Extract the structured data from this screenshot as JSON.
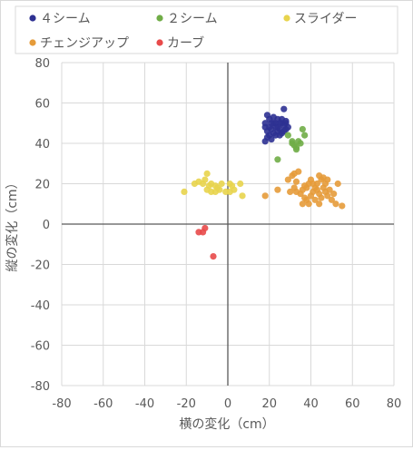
{
  "chart_data": {
    "type": "scatter",
    "title": "",
    "xlabel": "横の変化（cm）",
    "ylabel": "縦の変化（cm）",
    "xlim": [
      -80,
      80
    ],
    "ylim": [
      -80,
      80
    ],
    "x_ticks": [
      -80,
      -60,
      -40,
      -20,
      0,
      20,
      40,
      60,
      80
    ],
    "y_ticks": [
      -80,
      -60,
      -40,
      -20,
      0,
      20,
      40,
      60,
      80
    ],
    "x_tick_labels": [
      "-80",
      "-60",
      "-40",
      "-20",
      "0",
      "20",
      "40",
      "60",
      "80"
    ],
    "y_tick_labels": [
      "-80",
      "-60",
      "-40",
      "-20",
      "0",
      "20",
      "40",
      "60",
      "80"
    ],
    "grid": true,
    "legend_position": "top",
    "series": [
      {
        "name": "４シーム",
        "color": "#2e3192",
        "points": [
          [
            18,
            41
          ],
          [
            19,
            43
          ],
          [
            20,
            44
          ],
          [
            21,
            42
          ],
          [
            22,
            45
          ],
          [
            19,
            46
          ],
          [
            20,
            48
          ],
          [
            21,
            47
          ],
          [
            22,
            50
          ],
          [
            23,
            48
          ],
          [
            24,
            46
          ],
          [
            25,
            47
          ],
          [
            26,
            50
          ],
          [
            27,
            49
          ],
          [
            28,
            47
          ],
          [
            24,
            52
          ],
          [
            26,
            52
          ],
          [
            28,
            51
          ],
          [
            22,
            53
          ],
          [
            20,
            52
          ],
          [
            19,
            54
          ],
          [
            18,
            50
          ],
          [
            18,
            48
          ],
          [
            23,
            44
          ],
          [
            25,
            44
          ],
          [
            27,
            46
          ],
          [
            28,
            50
          ],
          [
            23,
            50
          ],
          [
            21,
            50
          ],
          [
            24,
            48
          ],
          [
            27,
            57
          ],
          [
            25,
            50
          ],
          [
            29,
            48
          ],
          [
            26,
            45
          ]
        ]
      },
      {
        "name": "２シーム",
        "color": "#70ad47",
        "points": [
          [
            29,
            44
          ],
          [
            31,
            41
          ],
          [
            32,
            39
          ],
          [
            33,
            38
          ],
          [
            34,
            41
          ],
          [
            35,
            40
          ],
          [
            37,
            44
          ],
          [
            36,
            47
          ],
          [
            33,
            37
          ],
          [
            31,
            40
          ],
          [
            24,
            32
          ]
        ]
      },
      {
        "name": "スライダー",
        "color": "#e8d44d",
        "points": [
          [
            -21,
            16
          ],
          [
            -16,
            20
          ],
          [
            -14,
            21
          ],
          [
            -12,
            20
          ],
          [
            -11,
            22
          ],
          [
            -10,
            25
          ],
          [
            -9,
            19
          ],
          [
            -8,
            20
          ],
          [
            -10,
            17
          ],
          [
            -8,
            16
          ],
          [
            -6,
            16
          ],
          [
            -5,
            18
          ],
          [
            -4,
            17
          ],
          [
            -6,
            19
          ],
          [
            -1,
            16
          ],
          [
            1,
            16
          ],
          [
            2,
            19
          ],
          [
            1,
            20
          ],
          [
            3,
            17
          ],
          [
            6,
            20
          ],
          [
            7,
            14
          ],
          [
            -3,
            20
          ]
        ]
      },
      {
        "name": "チェンジアップ",
        "color": "#e59b3a",
        "points": [
          [
            18,
            14
          ],
          [
            24,
            17
          ],
          [
            29,
            22
          ],
          [
            30,
            16
          ],
          [
            31,
            24
          ],
          [
            32,
            25
          ],
          [
            33,
            21
          ],
          [
            34,
            26
          ],
          [
            32,
            18
          ],
          [
            33,
            16
          ],
          [
            35,
            15
          ],
          [
            36,
            17
          ],
          [
            37,
            13
          ],
          [
            38,
            12
          ],
          [
            38,
            18
          ],
          [
            39,
            20
          ],
          [
            40,
            14
          ],
          [
            41,
            16
          ],
          [
            42,
            18
          ],
          [
            42,
            12
          ],
          [
            43,
            20
          ],
          [
            44,
            24
          ],
          [
            44,
            15
          ],
          [
            45,
            22
          ],
          [
            45,
            13
          ],
          [
            46,
            18
          ],
          [
            46,
            23
          ],
          [
            47,
            16
          ],
          [
            47,
            20
          ],
          [
            48,
            14
          ],
          [
            48,
            22
          ],
          [
            49,
            17
          ],
          [
            50,
            12
          ],
          [
            51,
            15
          ],
          [
            52,
            10
          ],
          [
            53,
            20
          ],
          [
            55,
            9
          ],
          [
            39,
            10
          ],
          [
            36,
            10
          ],
          [
            40,
            22
          ],
          [
            44,
            10
          ],
          [
            37,
            19
          ],
          [
            41,
            20
          ],
          [
            43,
            17
          ]
        ]
      },
      {
        "name": "カーブ",
        "color": "#e84a4a",
        "points": [
          [
            -11,
            -2
          ],
          [
            -12,
            -4
          ],
          [
            -14,
            -4
          ],
          [
            -7,
            -16
          ]
        ]
      }
    ]
  }
}
